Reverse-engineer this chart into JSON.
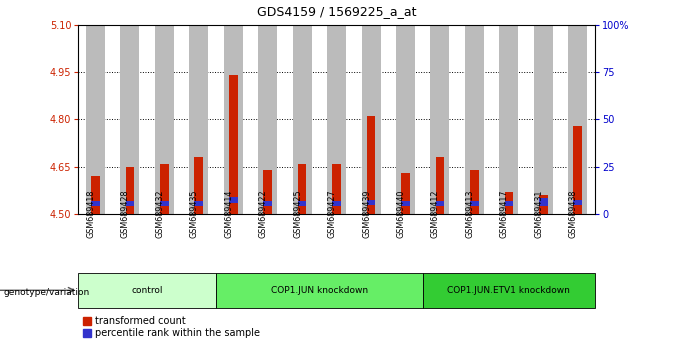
{
  "title": "GDS4159 / 1569225_a_at",
  "samples": [
    "GSM689418",
    "GSM689428",
    "GSM689432",
    "GSM689435",
    "GSM689414",
    "GSM689422",
    "GSM689425",
    "GSM689427",
    "GSM689439",
    "GSM689440",
    "GSM689412",
    "GSM689413",
    "GSM689417",
    "GSM689431",
    "GSM689438"
  ],
  "red_values": [
    4.62,
    4.65,
    4.66,
    4.68,
    4.94,
    4.64,
    4.66,
    4.66,
    4.81,
    4.63,
    4.68,
    4.64,
    4.57,
    4.56,
    4.78
  ],
  "blue_heights": [
    0.018,
    0.018,
    0.018,
    0.018,
    0.018,
    0.018,
    0.018,
    0.018,
    0.018,
    0.018,
    0.018,
    0.018,
    0.018,
    0.025,
    0.018
  ],
  "blue_bottoms": [
    4.525,
    4.525,
    4.525,
    4.525,
    4.535,
    4.525,
    4.525,
    4.525,
    4.528,
    4.525,
    4.525,
    4.525,
    4.525,
    4.525,
    4.528
  ],
  "ymin": 4.5,
  "ymax": 5.1,
  "yticks_left": [
    4.5,
    4.65,
    4.8,
    4.95,
    5.1
  ],
  "yticks_right_pct": [
    0,
    25,
    50,
    75,
    100
  ],
  "groups": [
    {
      "label": "control",
      "start": 0,
      "end": 4,
      "color": "#ccffcc"
    },
    {
      "label": "COP1.JUN knockdown",
      "start": 4,
      "end": 10,
      "color": "#66ee66"
    },
    {
      "label": "COP1.JUN.ETV1 knockdown",
      "start": 10,
      "end": 15,
      "color": "#33cc33"
    }
  ],
  "bar_color": "#cc2200",
  "blue_color": "#3333cc",
  "bar_width": 0.55,
  "red_bar_width": 0.25,
  "xlabel_label": "genotype/variation",
  "legend_red": "transformed count",
  "legend_blue": "percentile rank within the sample",
  "tick_color_left": "#cc2200",
  "tick_color_right": "#0000cc",
  "bar_bg_color": "#bbbbbb"
}
